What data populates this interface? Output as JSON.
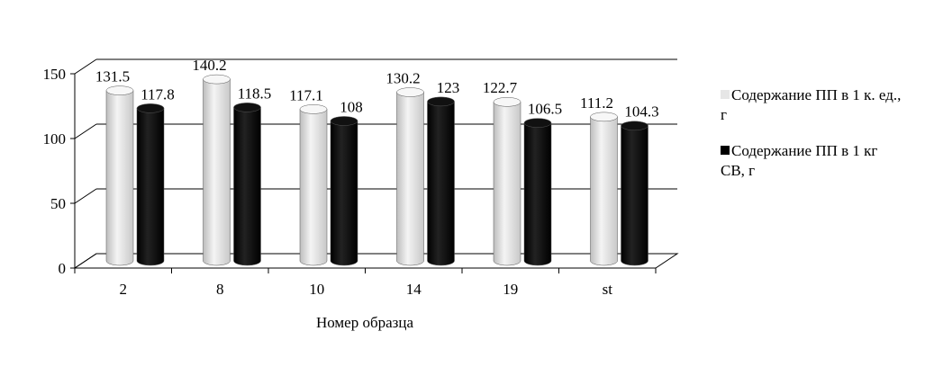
{
  "chart_data": {
    "type": "bar3d",
    "x_label": "Номер образца",
    "categories": [
      "2",
      "8",
      "10",
      "14",
      "19",
      "st"
    ],
    "series": [
      {
        "name": "Содержание ПП в 1 к. ед., г",
        "color": "#e6e6e6",
        "values": [
          131.5,
          140.2,
          117.1,
          130.2,
          122.7,
          111.2
        ]
      },
      {
        "name": "Содержание ПП в 1 кг СВ, г",
        "color": "#000000",
        "values": [
          117.8,
          118.5,
          108,
          123,
          106.5,
          104.3
        ]
      }
    ],
    "ylim": [
      0,
      150
    ],
    "yticks": [
      0,
      50,
      100,
      150
    ],
    "grid": true,
    "legend": "right"
  }
}
